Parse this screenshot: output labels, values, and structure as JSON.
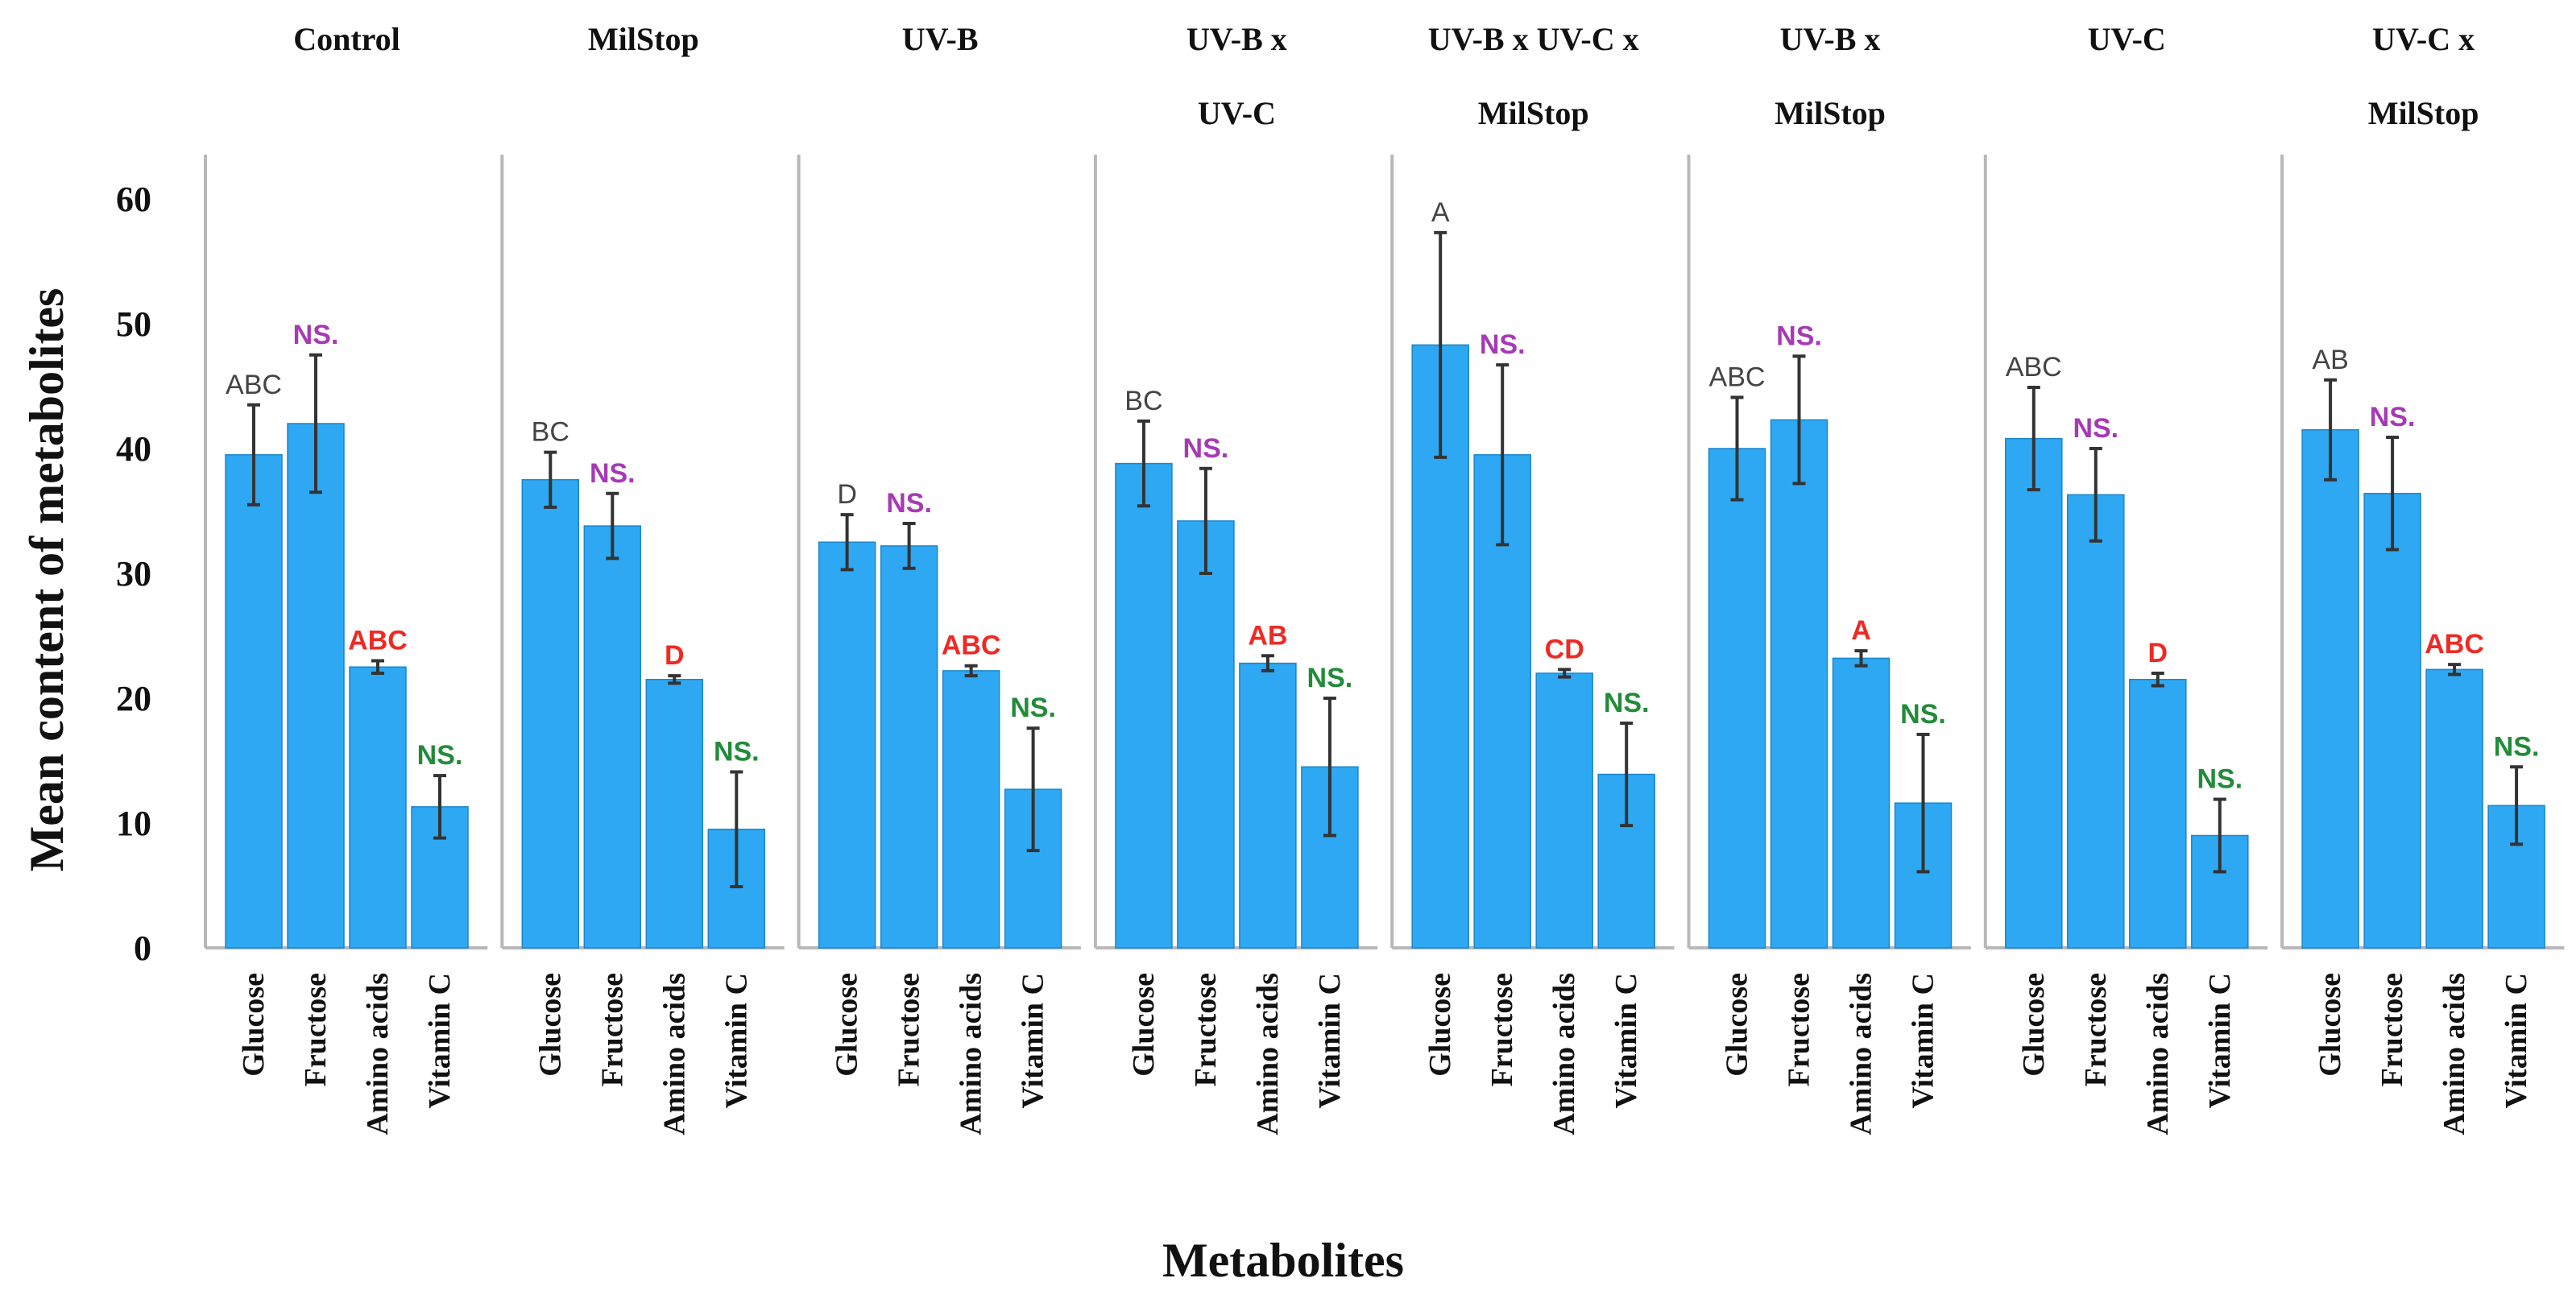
{
  "chart_data": {
    "type": "bar",
    "ylabel": "Mean content of metabolites",
    "xlabel": "Metabolites",
    "ylim": [
      0,
      63
    ],
    "yticks": [
      0,
      10,
      20,
      30,
      40,
      50,
      60
    ],
    "categories": [
      "Glucose",
      "Fructose",
      "Amino acids",
      "Vitamin C"
    ],
    "colors": {
      "bar": "#2ea8f2",
      "bar_edge": "#1a86cc",
      "error_bar": "#333333",
      "panel_line": "#b8b8b8",
      "glucose_letters": "#444444",
      "fructose_letters": "#a63ab5",
      "amino_letters": "#ee2a24",
      "vitaminc_letters": "#228b3a"
    },
    "panels": [
      {
        "title_lines": [
          "Control"
        ],
        "values": [
          39.5,
          42,
          22.5,
          11.3
        ],
        "errors": [
          4,
          5.5,
          0.5,
          2.5
        ],
        "letters": [
          "ABC",
          "NS.",
          "ABC",
          "NS."
        ]
      },
      {
        "title_lines": [
          "MilStop"
        ],
        "values": [
          37.5,
          33.8,
          21.5,
          9.5
        ],
        "errors": [
          2.2,
          2.6,
          0.3,
          4.6
        ],
        "letters": [
          "BC",
          "NS.",
          "D",
          "NS."
        ]
      },
      {
        "title_lines": [
          "UV-B"
        ],
        "values": [
          32.5,
          32.2,
          22.2,
          12.7
        ],
        "errors": [
          2.2,
          1.8,
          0.4,
          4.9
        ],
        "letters": [
          "D",
          "NS.",
          "ABC",
          "NS."
        ]
      },
      {
        "title_lines": [
          "UV-B x",
          "UV-C"
        ],
        "values": [
          38.8,
          34.2,
          22.8,
          14.5
        ],
        "errors": [
          3.4,
          4.2,
          0.6,
          5.5
        ],
        "letters": [
          "BC",
          "NS.",
          "AB",
          "NS."
        ]
      },
      {
        "title_lines": [
          "UV-B x UV-C x",
          "MilStop"
        ],
        "values": [
          48.3,
          39.5,
          22,
          13.9
        ],
        "errors": [
          9,
          7.2,
          0.3,
          4.1
        ],
        "letters": [
          "A",
          "NS.",
          "CD",
          "NS."
        ]
      },
      {
        "title_lines": [
          "UV-B x",
          "MilStop"
        ],
        "values": [
          40,
          42.3,
          23.2,
          11.6
        ],
        "errors": [
          4.1,
          5.1,
          0.6,
          5.5
        ],
        "letters": [
          "ABC",
          "NS.",
          "A",
          "NS."
        ]
      },
      {
        "title_lines": [
          "UV-C"
        ],
        "values": [
          40.8,
          36.3,
          21.5,
          9
        ],
        "errors": [
          4.1,
          3.7,
          0.5,
          2.9
        ],
        "letters": [
          "ABC",
          "NS.",
          "D",
          "NS."
        ]
      },
      {
        "title_lines": [
          "UV-C x",
          "MilStop"
        ],
        "values": [
          41.5,
          36.4,
          22.3,
          11.4
        ],
        "errors": [
          4,
          4.5,
          0.4,
          3.1
        ],
        "letters": [
          "AB",
          "NS.",
          "ABC",
          "NS."
        ]
      }
    ]
  }
}
